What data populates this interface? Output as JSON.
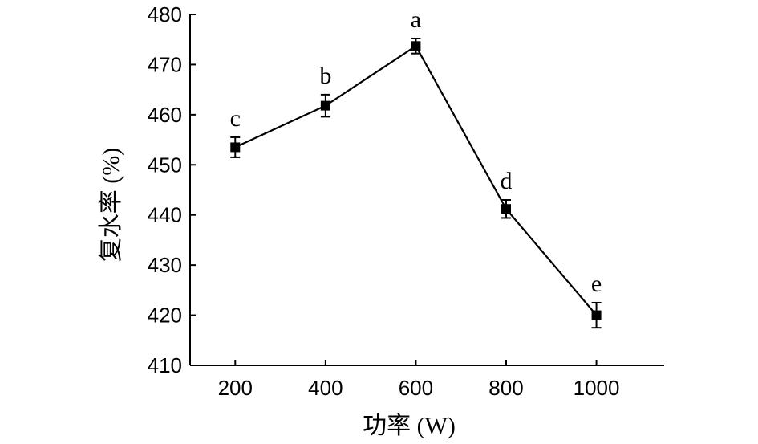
{
  "chart_data": {
    "type": "line",
    "x": [
      200,
      400,
      600,
      800,
      1000
    ],
    "series": [
      {
        "values": [
          453.5,
          461.8,
          473.7,
          441.2,
          420.0
        ],
        "errors": [
          2.0,
          2.2,
          1.5,
          1.8,
          2.5
        ],
        "labels": [
          "c",
          "b",
          "a",
          "d",
          "e"
        ]
      }
    ],
    "xlabel": "功率 (W)",
    "ylabel": "复水率 (%)",
    "xticks": [
      "200",
      "400",
      "600",
      "800",
      "1000"
    ],
    "yticks": [
      "410",
      "420",
      "430",
      "440",
      "450",
      "460",
      "470",
      "480"
    ],
    "xlim": [
      100,
      1150
    ],
    "ylim": [
      410,
      480
    ],
    "grid": false,
    "colors": {
      "line": "#000000",
      "marker": "#000000"
    }
  }
}
